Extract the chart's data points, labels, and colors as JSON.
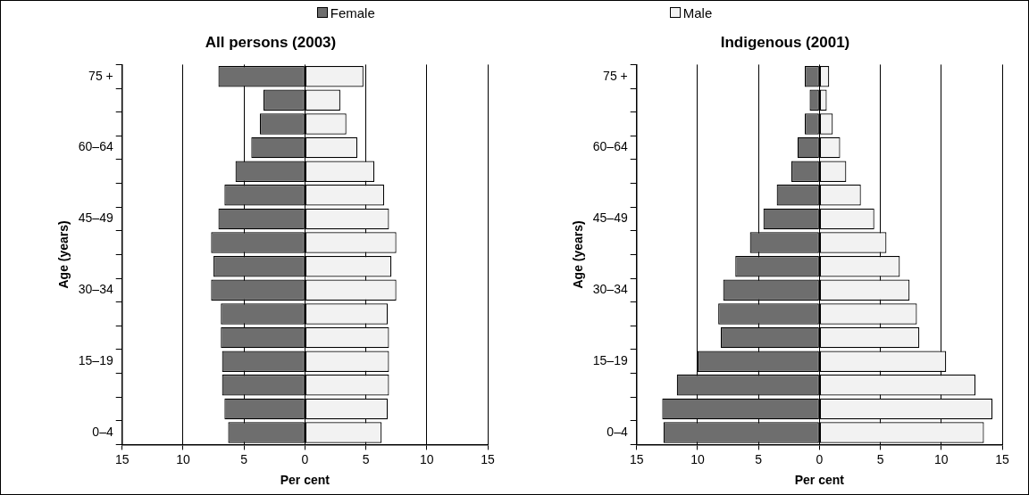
{
  "chart_data": [
    {
      "type": "bar",
      "orientation": "horizontal",
      "stacked": true,
      "title": "All persons (2003)",
      "xlabel": "Per cent",
      "ylabel": "Age (years)",
      "categories": [
        "75 +",
        null,
        null,
        "60–64",
        null,
        null,
        "45–49",
        null,
        null,
        "30–34",
        null,
        null,
        "15–19",
        null,
        null,
        "0–4"
      ],
      "series": [
        {
          "name": "Female",
          "color": "#6e6e6e",
          "values": [
            -7.1,
            -3.4,
            -3.7,
            -4.4,
            -5.7,
            -6.6,
            -7.1,
            -7.7,
            -7.5,
            -7.7,
            -6.9,
            -6.9,
            -6.8,
            -6.8,
            -6.6,
            -6.3
          ]
        },
        {
          "name": "Male",
          "color": "#f2f2f2",
          "values": [
            4.8,
            2.9,
            3.4,
            4.3,
            5.7,
            6.5,
            6.9,
            7.5,
            7.1,
            7.5,
            6.8,
            6.9,
            6.9,
            6.9,
            6.8,
            6.3
          ]
        }
      ],
      "xlim": [
        -15,
        15
      ],
      "xticks": [
        {
          "value": -15,
          "label": "15"
        },
        {
          "value": -10,
          "label": "10"
        },
        {
          "value": -5,
          "label": "5"
        },
        0,
        5,
        10,
        15
      ],
      "grid": "x",
      "legend": "top"
    },
    {
      "type": "bar",
      "orientation": "horizontal",
      "stacked": true,
      "title": "Indigenous (2001)",
      "xlabel": "Per cent",
      "ylabel": "Age (years)",
      "categories": [
        "75 +",
        null,
        null,
        "60–64",
        null,
        null,
        "45–49",
        null,
        null,
        "30–34",
        null,
        null,
        "15–19",
        null,
        null,
        "0–4"
      ],
      "series": [
        {
          "color": "#6e6e6e",
          "values": [
            -1.2,
            -0.8,
            -1.2,
            -1.8,
            -2.3,
            -3.5,
            -4.6,
            -5.7,
            -6.9,
            -7.9,
            -8.3,
            -8.1,
            -10.0,
            -11.7,
            -12.9,
            -12.8
          ]
        },
        {
          "color": "#f2f2f2",
          "values": [
            0.8,
            0.6,
            1.1,
            1.7,
            2.2,
            3.4,
            4.5,
            5.5,
            6.6,
            7.4,
            8.0,
            8.2,
            10.4,
            12.8,
            14.2,
            13.5
          ]
        }
      ],
      "xlim": [
        -15,
        15
      ],
      "xticks": [
        {
          "value": -15,
          "label": "15"
        },
        {
          "value": -10,
          "label": "10"
        },
        {
          "value": -5,
          "label": "5"
        },
        0,
        5,
        10,
        15
      ],
      "grid": "x"
    }
  ]
}
